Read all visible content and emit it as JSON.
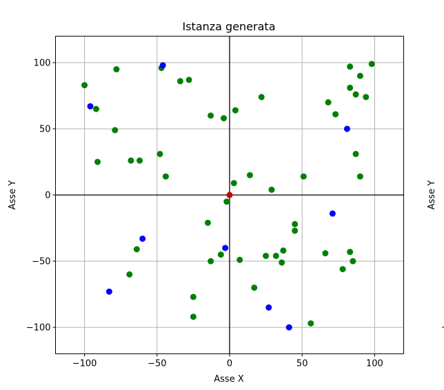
{
  "chart_data": {
    "type": "scatter",
    "title": "Istanza generata",
    "xlabel": "Asse X",
    "ylabel": "Asse Y",
    "second_panel_ylabel": "Asse Y",
    "xlim": [
      -120,
      120
    ],
    "ylim": [
      -120,
      120
    ],
    "xticks": [
      -100,
      -50,
      0,
      50,
      100
    ],
    "yticks": [
      -100,
      -50,
      0,
      50,
      100
    ],
    "tick_labels": [
      "−100",
      "−50",
      "0",
      "50",
      "100"
    ],
    "grid": true,
    "origin_lines": true,
    "series": [
      {
        "color": "#008000",
        "points": [
          [
            -100,
            83
          ],
          [
            -78,
            95
          ],
          [
            -47,
            96
          ],
          [
            -34,
            86
          ],
          [
            -28,
            87
          ],
          [
            -92,
            65
          ],
          [
            -79,
            49
          ],
          [
            -91,
            25
          ],
          [
            -68,
            26
          ],
          [
            -62,
            26
          ],
          [
            -48,
            31
          ],
          [
            -44,
            14
          ],
          [
            -13,
            60
          ],
          [
            -4,
            58
          ],
          [
            4,
            64
          ],
          [
            22,
            74
          ],
          [
            14,
            15
          ],
          [
            3,
            9
          ],
          [
            29,
            4
          ],
          [
            51,
            14
          ],
          [
            -2,
            -5
          ],
          [
            -15,
            -21
          ],
          [
            -13,
            -50
          ],
          [
            -6,
            -45
          ],
          [
            7,
            -49
          ],
          [
            -64,
            -41
          ],
          [
            -69,
            -60
          ],
          [
            -25,
            -77
          ],
          [
            -25,
            -92
          ],
          [
            17,
            -70
          ],
          [
            25,
            -46
          ],
          [
            32,
            -46
          ],
          [
            36,
            -51
          ],
          [
            37,
            -42
          ],
          [
            45,
            -22
          ],
          [
            45,
            -27
          ],
          [
            56,
            -97
          ],
          [
            66,
            -44
          ],
          [
            78,
            -56
          ],
          [
            83,
            -43
          ],
          [
            85,
            -50
          ],
          [
            68,
            70
          ],
          [
            73,
            61
          ],
          [
            83,
            97
          ],
          [
            83,
            81
          ],
          [
            87,
            76
          ],
          [
            90,
            90
          ],
          [
            94,
            74
          ],
          [
            98,
            99
          ],
          [
            87,
            31
          ],
          [
            90,
            14
          ]
        ]
      },
      {
        "color": "#0000ff",
        "points": [
          [
            -96,
            67
          ],
          [
            -46,
            98
          ],
          [
            81,
            50
          ],
          [
            71,
            -14
          ],
          [
            -60,
            -33
          ],
          [
            -83,
            -73
          ],
          [
            -3,
            -40
          ],
          [
            27,
            -85
          ],
          [
            41,
            -100
          ]
        ]
      },
      {
        "color": "#cc0000",
        "points": [
          [
            0,
            0
          ]
        ]
      }
    ]
  }
}
